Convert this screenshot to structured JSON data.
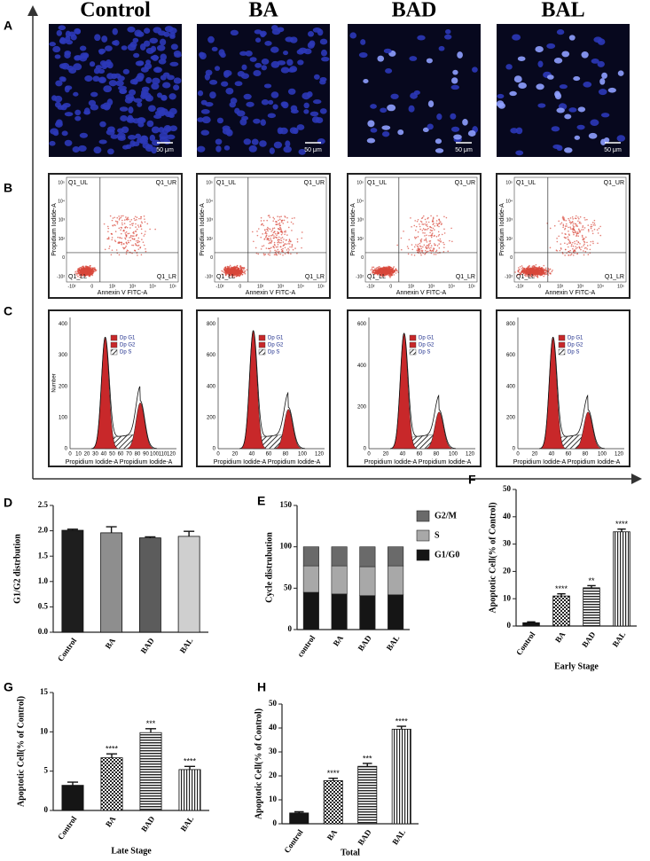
{
  "figure": {
    "columns": [
      "Control",
      "BA",
      "BAD",
      "BAL"
    ],
    "panel_labels": [
      "A",
      "B",
      "C",
      "D",
      "E",
      "F",
      "G",
      "H"
    ]
  },
  "panel_a": {
    "scale_bar": "50 μm"
  },
  "panel_b": {
    "quadrants": [
      "Q1_UL",
      "Q1_UR",
      "Q1_LL",
      "Q1_LR"
    ],
    "xlabel": "Annexin V FITC-A",
    "ylabel": "Propidium Iodide-A",
    "xticks": [
      "-10²",
      "0",
      "10²",
      "10³",
      "10⁴",
      "10⁵"
    ],
    "yticks": [
      "-10²",
      "0",
      "10²",
      "10³",
      "10⁴",
      "10⁵"
    ]
  },
  "panel_c": {
    "legend": [
      "Dp G1",
      "Dp G2",
      "Dp S"
    ],
    "xlabel": "Propidium Iodide-A Propidium Iodide-A",
    "ylabel": "Number",
    "xticks": [
      "0",
      "10",
      "20",
      "30",
      "40",
      "50",
      "60",
      "70",
      "80",
      "90",
      "100",
      "110",
      "120"
    ],
    "yticks": [
      [
        "0",
        "100",
        "200",
        "300",
        "400"
      ],
      [
        "0",
        "200",
        "400",
        "600",
        "800"
      ],
      [
        "0",
        "200",
        "400",
        "600"
      ],
      [
        "0",
        "200",
        "400",
        "600",
        "800"
      ]
    ]
  },
  "chart_data": [
    {
      "type": "bar",
      "ylabel": "G1/G2 distrbution",
      "categories": [
        "Control",
        "BA",
        "BAD",
        "BAL"
      ],
      "values": [
        2.01,
        1.96,
        1.86,
        1.89
      ],
      "errors": [
        0.02,
        0.12,
        0.02,
        0.1
      ],
      "colors": [
        "#1e1e1e",
        "#8e8e8e",
        "#5c5c5c",
        "#cfcfcf"
      ],
      "ylim": [
        0,
        2.5
      ],
      "yticks": [
        {
          "value": 0,
          "label": "0.0"
        },
        0.5,
        {
          "value": 1,
          "label": "1.0"
        },
        1.5,
        {
          "value": 2,
          "label": "2.0"
        },
        2.5
      ]
    },
    {
      "type": "stacked_bar",
      "ylabel": "Cycle distrubution",
      "categories": [
        "control",
        "BA",
        "BAD",
        "BAL"
      ],
      "series": [
        {
          "name": "G1/G0",
          "color": "#151515",
          "values": [
            45,
            43,
            41,
            42
          ]
        },
        {
          "name": "S",
          "color": "#a8a8a8",
          "values": [
            32,
            34,
            35,
            35
          ]
        },
        {
          "name": "G2/M",
          "color": "#6a6a6a",
          "values": [
            23,
            23,
            24,
            23
          ]
        }
      ],
      "ylim": [
        0,
        150
      ],
      "yticks": [
        0,
        50,
        100,
        150
      ]
    },
    {
      "type": "bar",
      "ylabel": "Apoptotic Cell(% of Control)",
      "xlabel": "Early Stage",
      "categories": [
        "Control",
        "BA",
        "BAD",
        "BAL"
      ],
      "values": [
        1.2,
        11,
        14,
        34.5
      ],
      "errors": [
        0.3,
        0.8,
        0.8,
        1
      ],
      "annotations": [
        null,
        "****",
        "**",
        "****"
      ],
      "bar_styles": [
        "solid",
        "checker",
        "horizontal",
        "vertical"
      ],
      "ylim": [
        0,
        50
      ],
      "yticks": [
        0,
        10,
        20,
        30,
        40,
        50
      ]
    },
    {
      "type": "bar",
      "ylabel": "Apoptotic Cell(% of Control)",
      "xlabel": "Late Stage",
      "categories": [
        "Control",
        "BA",
        "BAD",
        "BAL"
      ],
      "values": [
        3.2,
        6.7,
        9.9,
        5.2
      ],
      "errors": [
        0.4,
        0.5,
        0.5,
        0.4
      ],
      "annotations": [
        null,
        "****",
        "***",
        "****"
      ],
      "bar_styles": [
        "solid",
        "checker",
        "horizontal",
        "vertical"
      ],
      "ylim": [
        0,
        15
      ],
      "yticks": [
        0,
        5,
        10,
        15
      ]
    },
    {
      "type": "bar",
      "ylabel": "Apoptotic Cell(% of Control)",
      "xlabel": "Total",
      "categories": [
        "Control",
        "BA",
        "BAD",
        "BAL"
      ],
      "values": [
        4.5,
        18,
        24,
        39.5
      ],
      "errors": [
        0.5,
        1,
        1.2,
        1.2
      ],
      "annotations": [
        null,
        "****",
        "***",
        "****"
      ],
      "bar_styles": [
        "solid",
        "checker",
        "horizontal",
        "vertical"
      ],
      "ylim": [
        0,
        50
      ],
      "yticks": [
        0,
        10,
        20,
        30,
        40,
        50
      ]
    }
  ]
}
